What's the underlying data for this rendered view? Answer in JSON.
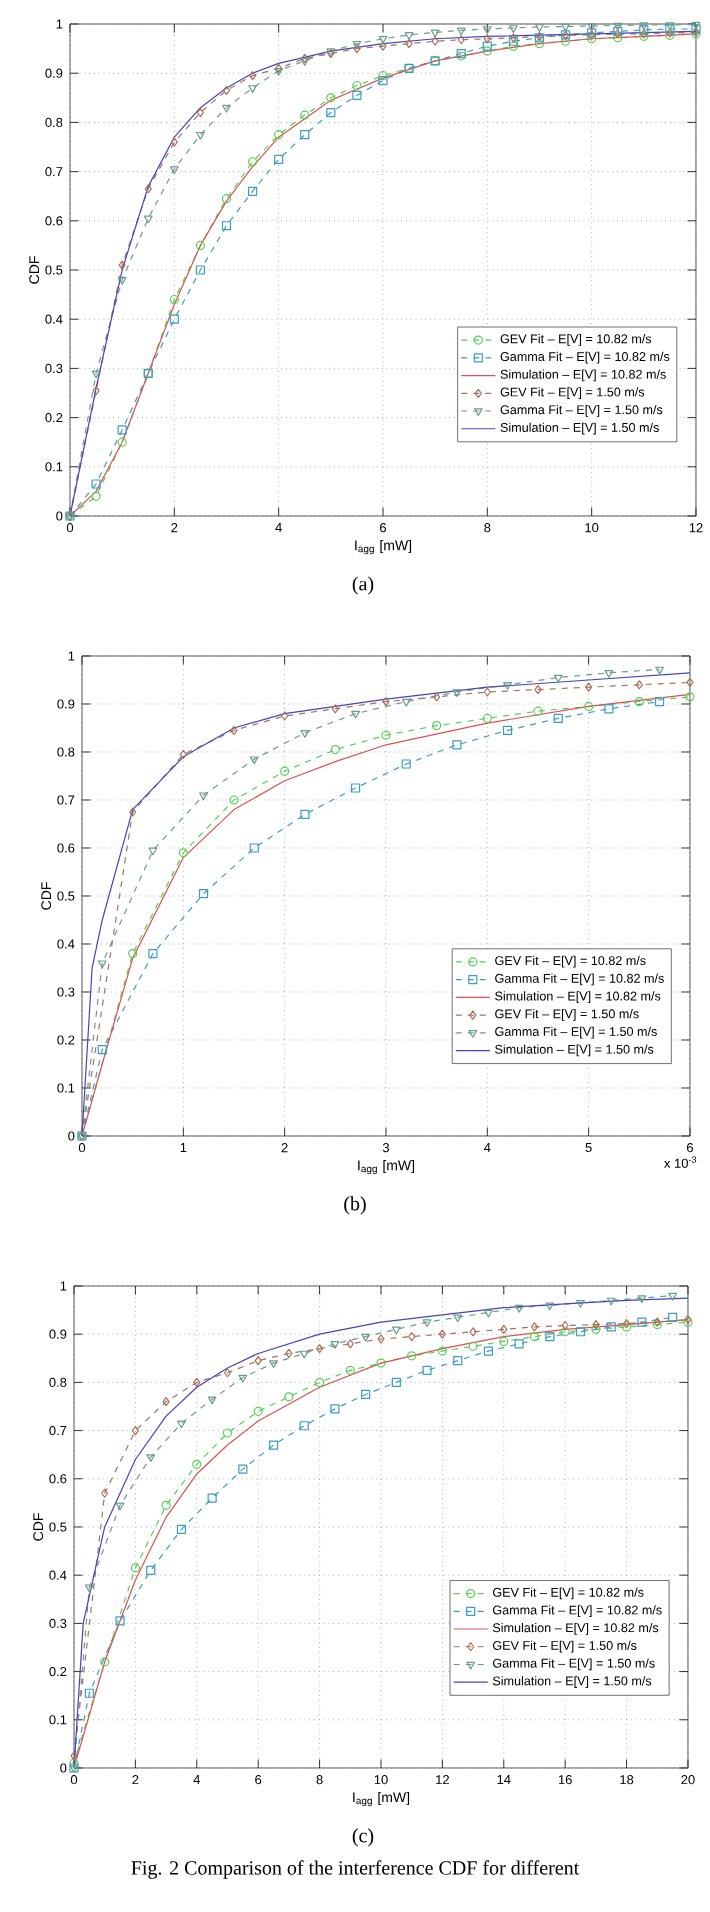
{
  "chart_data": [
    {
      "type": "line",
      "xlabel": "I$_{agg}$ [mW]",
      "ylabel": "CDF",
      "xlim": [
        0,
        12
      ],
      "xticks": [
        0,
        2,
        4,
        6,
        8,
        10,
        12
      ],
      "ylim": [
        0,
        1
      ],
      "yticks": [
        0,
        0.1,
        0.2,
        0.3,
        0.4,
        0.5,
        0.6,
        0.7,
        0.8,
        0.9,
        1
      ],
      "grid": true,
      "legend": "bottom right",
      "annotations": [
        "(a)"
      ],
      "series": [
        {
          "name": "GEV Fit – E[V] = 10.82 m/s",
          "color": "#55d055",
          "marker": "circle",
          "line_style": "dashed",
          "x": [
            0,
            0.5,
            1,
            1.5,
            2,
            2.5,
            3,
            3.5,
            4,
            4.5,
            5,
            5.5,
            6,
            6.5,
            7,
            7.5,
            8,
            8.5,
            9,
            9.5,
            10,
            10.5,
            11,
            11.5,
            12
          ],
          "values": [
            0,
            0.04,
            0.15,
            0.29,
            0.44,
            0.55,
            0.645,
            0.72,
            0.775,
            0.815,
            0.85,
            0.875,
            0.895,
            0.91,
            0.925,
            0.935,
            0.945,
            0.955,
            0.96,
            0.965,
            0.97,
            0.972,
            0.975,
            0.977,
            0.98
          ]
        },
        {
          "name": "Gamma Fit – E[V] = 10.82 m/s",
          "color": "#3c9cc8",
          "marker": "square",
          "line_style": "dashed",
          "x": [
            0,
            0.5,
            1,
            1.5,
            2,
            2.5,
            3,
            3.5,
            4,
            4.5,
            5,
            5.5,
            6,
            6.5,
            7,
            7.5,
            8,
            8.5,
            9,
            9.5,
            10,
            10.5,
            11,
            11.5,
            12
          ],
          "values": [
            0,
            0.065,
            0.175,
            0.29,
            0.4,
            0.5,
            0.59,
            0.66,
            0.725,
            0.775,
            0.82,
            0.855,
            0.885,
            0.91,
            0.925,
            0.94,
            0.955,
            0.965,
            0.972,
            0.978,
            0.982,
            0.985,
            0.988,
            0.99,
            0.99
          ]
        },
        {
          "name": "Simulation – E[V] = 10.82 m/s",
          "color": "#e05050",
          "marker": "none",
          "line_style": "solid",
          "x": [
            0,
            0.5,
            1,
            1.5,
            2,
            2.5,
            3,
            3.5,
            4,
            5,
            6,
            7,
            8,
            9,
            10,
            11,
            12
          ],
          "values": [
            0,
            0.05,
            0.15,
            0.29,
            0.43,
            0.55,
            0.64,
            0.71,
            0.77,
            0.845,
            0.89,
            0.925,
            0.945,
            0.96,
            0.97,
            0.975,
            0.98
          ]
        },
        {
          "name": "GEV Fit – E[V] = 1.50 m/s",
          "color": "#a8705c",
          "marker": "diamond",
          "line_style": "dashed",
          "x": [
            0,
            0.5,
            1,
            1.5,
            2,
            2.5,
            3,
            3.5,
            4,
            4.5,
            5,
            5.5,
            6,
            6.5,
            7,
            7.5,
            8,
            8.5,
            9,
            9.5,
            10,
            10.5,
            11,
            11.5,
            12
          ],
          "values": [
            0,
            0.255,
            0.51,
            0.665,
            0.76,
            0.82,
            0.865,
            0.895,
            0.91,
            0.93,
            0.94,
            0.95,
            0.955,
            0.96,
            0.965,
            0.968,
            0.97,
            0.972,
            0.975,
            0.977,
            0.978,
            0.98,
            0.98,
            0.982,
            0.983
          ]
        },
        {
          "name": "Gamma Fit – E[V] = 1.50 m/s",
          "color": "#6e9c8c",
          "marker": "triangle",
          "line_style": "dashed",
          "x": [
            0,
            0.5,
            1,
            1.5,
            2,
            2.5,
            3,
            3.5,
            4,
            4.5,
            5,
            5.5,
            6,
            6.5,
            7,
            7.5,
            8,
            8.5,
            9,
            9.5,
            10,
            10.5,
            11,
            11.5,
            12
          ],
          "values": [
            0,
            0.29,
            0.48,
            0.605,
            0.705,
            0.775,
            0.83,
            0.87,
            0.905,
            0.925,
            0.945,
            0.96,
            0.97,
            0.978,
            0.983,
            0.987,
            0.99,
            0.992,
            0.994,
            0.995,
            0.996,
            0.997,
            0.998,
            0.998,
            0.999
          ]
        },
        {
          "name": "Simulation – E[V] = 1.50 m/s",
          "color": "#4444c0",
          "marker": "none",
          "line_style": "solid",
          "x": [
            0,
            0.5,
            1,
            1.5,
            2,
            2.5,
            3,
            3.5,
            4,
            5,
            6,
            7,
            8,
            10,
            12
          ],
          "values": [
            0,
            0.26,
            0.5,
            0.67,
            0.77,
            0.83,
            0.87,
            0.9,
            0.92,
            0.945,
            0.96,
            0.97,
            0.975,
            0.98,
            0.985
          ]
        }
      ]
    },
    {
      "type": "line",
      "xlabel": "I$_{agg}$ [mW]",
      "ylabel": "CDF",
      "xlim": [
        0,
        6
      ],
      "xticks": [
        0,
        1,
        2,
        3,
        4,
        5,
        6
      ],
      "ylim": [
        0,
        1
      ],
      "yticks": [
        0,
        0.1,
        0.2,
        0.3,
        0.4,
        0.5,
        0.6,
        0.7,
        0.8,
        0.9,
        1
      ],
      "grid": true,
      "legend": "bottom right",
      "annotations": [
        "x 10$^{-3}$",
        "(b)"
      ],
      "series": [
        {
          "name": "GEV Fit – E[V] = 10.82 m/s",
          "color": "#55d055",
          "marker": "circle",
          "line_style": "dashed",
          "x": [
            0,
            0.5,
            1,
            1.5,
            2,
            2.5,
            3,
            3.5,
            4,
            4.5,
            5,
            5.5,
            6
          ],
          "values": [
            0,
            0.38,
            0.59,
            0.7,
            0.76,
            0.805,
            0.835,
            0.855,
            0.87,
            0.885,
            0.895,
            0.905,
            0.915
          ]
        },
        {
          "name": "Gamma Fit – E[V] = 10.82 m/s",
          "color": "#3c9cc8",
          "marker": "square",
          "line_style": "dashed",
          "x": [
            0,
            0.2,
            0.7,
            1.2,
            1.7,
            2.2,
            2.7,
            3.2,
            3.7,
            4.2,
            4.7,
            5.2,
            5.7
          ],
          "values": [
            0,
            0.18,
            0.38,
            0.505,
            0.6,
            0.67,
            0.725,
            0.775,
            0.815,
            0.845,
            0.87,
            0.89,
            0.905
          ]
        },
        {
          "name": "Simulation – E[V] = 10.82 m/s",
          "color": "#e05050",
          "marker": "none",
          "line_style": "solid",
          "x": [
            0,
            0.2,
            0.5,
            1,
            1.5,
            2,
            2.5,
            3,
            4,
            5,
            6
          ],
          "values": [
            0,
            0.15,
            0.37,
            0.58,
            0.68,
            0.74,
            0.78,
            0.815,
            0.86,
            0.895,
            0.92
          ]
        },
        {
          "name": "GEV Fit – E[V] = 1.50 m/s",
          "color": "#a8705c",
          "marker": "diamond",
          "line_style": "dashed",
          "x": [
            0,
            0.5,
            1,
            1.5,
            2,
            2.5,
            3,
            3.5,
            4,
            4.5,
            5,
            5.5,
            6
          ],
          "values": [
            0,
            0.675,
            0.795,
            0.845,
            0.875,
            0.89,
            0.905,
            0.915,
            0.925,
            0.93,
            0.935,
            0.94,
            0.945
          ]
        },
        {
          "name": "Gamma Fit – E[V] = 1.50 m/s",
          "color": "#6e9c8c",
          "marker": "triangle",
          "line_style": "dashed",
          "x": [
            0,
            0.2,
            0.7,
            1.2,
            1.7,
            2.2,
            2.7,
            3.2,
            3.7,
            4.2,
            4.7,
            5.2,
            5.7
          ],
          "values": [
            0,
            0.36,
            0.595,
            0.71,
            0.785,
            0.84,
            0.88,
            0.905,
            0.925,
            0.94,
            0.955,
            0.965,
            0.972
          ]
        },
        {
          "name": "Simulation – E[V] = 1.50 m/s",
          "color": "#4444c0",
          "marker": "none",
          "line_style": "solid",
          "x": [
            0,
            0.1,
            0.2,
            0.5,
            1,
            1.5,
            2,
            3,
            4,
            5,
            6
          ],
          "values": [
            0,
            0.35,
            0.45,
            0.68,
            0.79,
            0.85,
            0.88,
            0.91,
            0.935,
            0.95,
            0.965
          ]
        }
      ]
    },
    {
      "type": "line",
      "xlabel": "I$_{agg}$ [mW]",
      "ylabel": "CDF",
      "xlim": [
        0,
        20
      ],
      "xticks": [
        0,
        2,
        4,
        6,
        8,
        10,
        12,
        14,
        16,
        18,
        20
      ],
      "ylim": [
        0,
        1
      ],
      "yticks": [
        0,
        0.1,
        0.2,
        0.3,
        0.4,
        0.5,
        0.6,
        0.7,
        0.8,
        0.9,
        1
      ],
      "grid": true,
      "legend": "bottom right",
      "annotations": [
        "(c)",
        "Fig. 2 Comparison of the interference CDF for different"
      ],
      "series": [
        {
          "name": "GEV Fit – E[V] = 10.82 m/s",
          "color": "#55d055",
          "marker": "circle",
          "line_style": "dashed",
          "x": [
            0,
            1,
            2,
            3,
            4,
            5,
            6,
            7,
            8,
            9,
            10,
            11,
            12,
            13,
            14,
            15,
            16,
            17,
            18,
            19,
            20
          ],
          "values": [
            0.01,
            0.22,
            0.415,
            0.545,
            0.63,
            0.695,
            0.74,
            0.77,
            0.8,
            0.825,
            0.84,
            0.855,
            0.865,
            0.875,
            0.885,
            0.895,
            0.905,
            0.91,
            0.915,
            0.92,
            0.925
          ]
        },
        {
          "name": "Gamma Fit – E[V] = 10.82 m/s",
          "color": "#3c9cc8",
          "marker": "square",
          "line_style": "dashed",
          "x": [
            0,
            0.5,
            1.5,
            2.5,
            3.5,
            4.5,
            5.5,
            6.5,
            7.5,
            8.5,
            9.5,
            10.5,
            11.5,
            12.5,
            13.5,
            14.5,
            15.5,
            16.5,
            17.5,
            18.5,
            19.5
          ],
          "values": [
            0,
            0.155,
            0.305,
            0.41,
            0.495,
            0.56,
            0.62,
            0.67,
            0.71,
            0.745,
            0.775,
            0.8,
            0.825,
            0.845,
            0.865,
            0.88,
            0.895,
            0.905,
            0.915,
            0.925,
            0.935
          ]
        },
        {
          "name": "Simulation – E[V] = 10.82 m/s",
          "color": "#e05050",
          "marker": "none",
          "line_style": "solid",
          "x": [
            0,
            1,
            2,
            3,
            4,
            5,
            6,
            8,
            10,
            12,
            14,
            16,
            18,
            20
          ],
          "values": [
            0,
            0.22,
            0.39,
            0.52,
            0.61,
            0.67,
            0.72,
            0.79,
            0.84,
            0.87,
            0.895,
            0.91,
            0.92,
            0.93
          ]
        },
        {
          "name": "GEV Fit – E[V] = 1.50 m/s",
          "color": "#a8705c",
          "marker": "diamond",
          "line_style": "dashed",
          "x": [
            0,
            1,
            2,
            3,
            4,
            5,
            6,
            7,
            8,
            9,
            10,
            11,
            12,
            13,
            14,
            15,
            16,
            17,
            18,
            19,
            20
          ],
          "values": [
            0.025,
            0.57,
            0.7,
            0.76,
            0.8,
            0.82,
            0.845,
            0.86,
            0.87,
            0.88,
            0.89,
            0.895,
            0.9,
            0.905,
            0.91,
            0.915,
            0.918,
            0.92,
            0.922,
            0.925,
            0.93
          ]
        },
        {
          "name": "Gamma Fit – E[V] = 1.50 m/s",
          "color": "#6e9c8c",
          "marker": "triangle",
          "line_style": "dashed",
          "x": [
            0,
            0.5,
            1.5,
            2.5,
            3.5,
            4.5,
            5.5,
            6.5,
            7.5,
            8.5,
            9.5,
            10.5,
            11.5,
            12.5,
            13.5,
            14.5,
            15.5,
            16.5,
            17.5,
            18.5,
            19.5
          ],
          "values": [
            0,
            0.375,
            0.545,
            0.645,
            0.715,
            0.765,
            0.81,
            0.84,
            0.86,
            0.88,
            0.895,
            0.91,
            0.925,
            0.935,
            0.945,
            0.955,
            0.96,
            0.965,
            0.97,
            0.975,
            0.98
          ]
        },
        {
          "name": "Simulation – E[V] = 1.50 m/s",
          "color": "#4444c0",
          "marker": "none",
          "line_style": "solid",
          "x": [
            0,
            0.3,
            1,
            2,
            3,
            4,
            5,
            6,
            8,
            10,
            12,
            14,
            16,
            18,
            20
          ],
          "values": [
            0,
            0.3,
            0.5,
            0.64,
            0.73,
            0.79,
            0.83,
            0.86,
            0.9,
            0.925,
            0.94,
            0.955,
            0.963,
            0.97,
            0.975
          ]
        }
      ]
    }
  ]
}
